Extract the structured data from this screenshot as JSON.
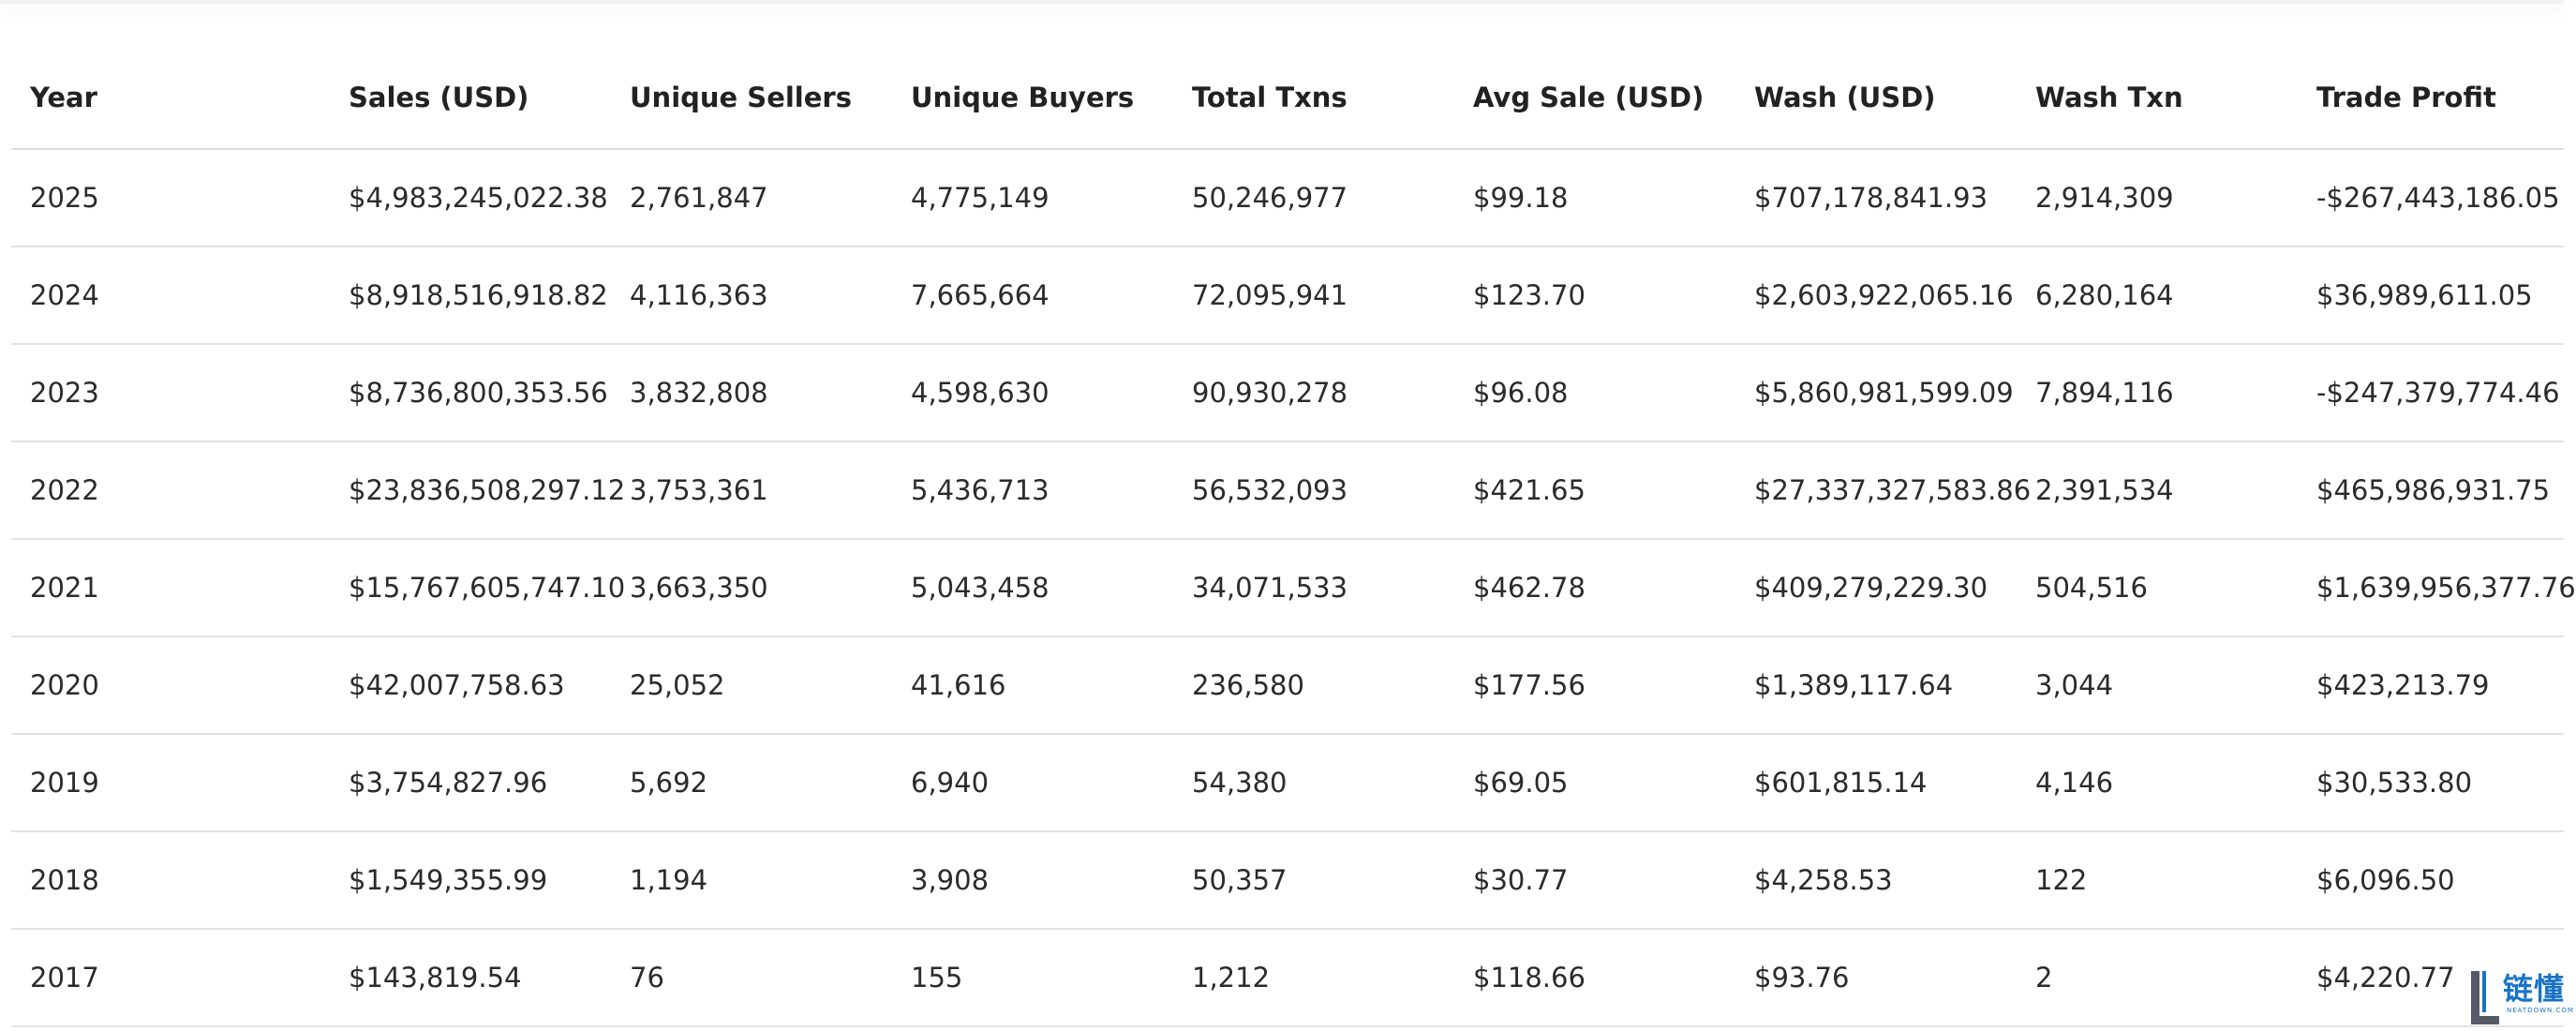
{
  "table": {
    "headers": [
      "Year",
      "Sales (USD)",
      "Unique Sellers",
      "Unique Buyers",
      "Total Txns",
      "Avg Sale (USD)",
      "Wash (USD)",
      "Wash Txn",
      "Trade Profit"
    ],
    "rows": [
      [
        "2025",
        "$4,983,245,022.38",
        "2,761,847",
        "4,775,149",
        "50,246,977",
        "$99.18",
        "$707,178,841.93",
        "2,914,309",
        "-$267,443,186.05"
      ],
      [
        "2024",
        "$8,918,516,918.82",
        "4,116,363",
        "7,665,664",
        "72,095,941",
        "$123.70",
        "$2,603,922,065.16",
        "6,280,164",
        "$36,989,611.05"
      ],
      [
        "2023",
        "$8,736,800,353.56",
        "3,832,808",
        "4,598,630",
        "90,930,278",
        "$96.08",
        "$5,860,981,599.09",
        "7,894,116",
        "-$247,379,774.46"
      ],
      [
        "2022",
        "$23,836,508,297.12",
        "3,753,361",
        "5,436,713",
        "56,532,093",
        "$421.65",
        "$27,337,327,583.86",
        "2,391,534",
        "$465,986,931.75"
      ],
      [
        "2021",
        "$15,767,605,747.10",
        "3,663,350",
        "5,043,458",
        "34,071,533",
        "$462.78",
        "$409,279,229.30",
        "504,516",
        "$1,639,956,377.76"
      ],
      [
        "2020",
        "$42,007,758.63",
        "25,052",
        "41,616",
        "236,580",
        "$177.56",
        "$1,389,117.64",
        "3,044",
        "$423,213.79"
      ],
      [
        "2019",
        "$3,754,827.96",
        "5,692",
        "6,940",
        "54,380",
        "$69.05",
        "$601,815.14",
        "4,146",
        "$30,533.80"
      ],
      [
        "2018",
        "$1,549,355.99",
        "1,194",
        "3,908",
        "50,357",
        "$30.77",
        "$4,258.53",
        "122",
        "$6,096.50"
      ],
      [
        "2017",
        "$143,819.54",
        "76",
        "155",
        "1,212",
        "$118.66",
        "$93.76",
        "2",
        "$4,220.77"
      ]
    ]
  },
  "watermark": {
    "text": "链懂",
    "subtext": "NEATDOWN.COM",
    "color": "#1a73c4"
  }
}
